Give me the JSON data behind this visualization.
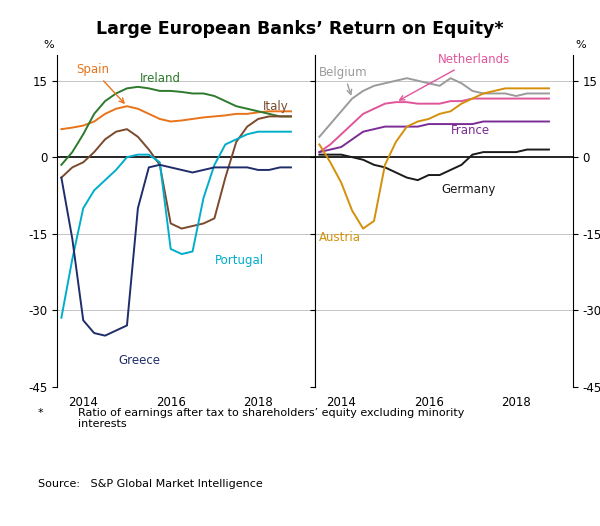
{
  "title": "Large European Banks’ Return on Equity*",
  "footnote_star": "*",
  "footnote_text": "Ratio of earnings after tax to shareholders’ equity excluding minority\ninterests",
  "source": "Source:   S&P Global Market Intelligence",
  "ylim": [
    -45,
    20
  ],
  "yticks": [
    -45,
    -30,
    -15,
    0,
    15
  ],
  "ytick_labels": [
    "-45",
    "-30",
    "-15",
    "0",
    "15"
  ],
  "xlim": [
    2013.4,
    2019.3
  ],
  "xticks": [
    2014,
    2016,
    2018
  ],
  "left_panel": {
    "Spain": {
      "color": "#E8731A",
      "x": [
        2013.5,
        2013.75,
        2014.0,
        2014.25,
        2014.5,
        2014.75,
        2015.0,
        2015.25,
        2015.5,
        2015.75,
        2016.0,
        2016.25,
        2016.5,
        2016.75,
        2017.0,
        2017.25,
        2017.5,
        2017.75,
        2018.0,
        2018.25,
        2018.5,
        2018.75
      ],
      "y": [
        5.5,
        5.8,
        6.2,
        7.0,
        8.5,
        9.5,
        10.0,
        9.5,
        8.5,
        7.5,
        7.0,
        7.2,
        7.5,
        7.8,
        8.0,
        8.2,
        8.5,
        8.5,
        8.8,
        9.0,
        9.0,
        9.0
      ]
    },
    "Ireland": {
      "color": "#2D7A2D",
      "x": [
        2013.5,
        2013.75,
        2014.0,
        2014.25,
        2014.5,
        2014.75,
        2015.0,
        2015.25,
        2015.5,
        2015.75,
        2016.0,
        2016.25,
        2016.5,
        2016.75,
        2017.0,
        2017.25,
        2017.5,
        2017.75,
        2018.0,
        2018.25,
        2018.5,
        2018.75
      ],
      "y": [
        -1.5,
        1.0,
        4.5,
        8.5,
        11.0,
        12.5,
        13.5,
        13.8,
        13.5,
        13.0,
        13.0,
        12.8,
        12.5,
        12.5,
        12.0,
        11.0,
        10.0,
        9.5,
        9.0,
        8.5,
        8.0,
        8.0
      ]
    },
    "Italy": {
      "color": "#7B4A2D",
      "x": [
        2013.5,
        2013.75,
        2014.0,
        2014.25,
        2014.5,
        2014.75,
        2015.0,
        2015.25,
        2015.5,
        2015.75,
        2016.0,
        2016.25,
        2016.5,
        2016.75,
        2017.0,
        2017.25,
        2017.5,
        2017.75,
        2018.0,
        2018.25,
        2018.5,
        2018.75
      ],
      "y": [
        -4.0,
        -2.0,
        -1.0,
        1.0,
        3.5,
        5.0,
        5.5,
        4.0,
        1.5,
        -1.5,
        -13.0,
        -14.0,
        -13.5,
        -13.0,
        -12.0,
        -4.0,
        3.0,
        6.0,
        7.5,
        8.0,
        8.0,
        8.0
      ]
    },
    "Portugal": {
      "color": "#00AECC",
      "x": [
        2013.5,
        2013.75,
        2014.0,
        2014.25,
        2014.5,
        2014.75,
        2015.0,
        2015.25,
        2015.5,
        2015.75,
        2016.0,
        2016.25,
        2016.5,
        2016.75,
        2017.0,
        2017.25,
        2017.5,
        2017.75,
        2018.0,
        2018.25,
        2018.5,
        2018.75
      ],
      "y": [
        -31.5,
        -20.0,
        -10.0,
        -6.5,
        -4.5,
        -2.5,
        0.0,
        0.5,
        0.5,
        -1.0,
        -18.0,
        -19.0,
        -18.5,
        -8.0,
        -1.5,
        2.5,
        3.5,
        4.5,
        5.0,
        5.0,
        5.0,
        5.0
      ]
    },
    "Greece": {
      "color": "#1F2D6B",
      "x": [
        2013.5,
        2013.75,
        2014.0,
        2014.25,
        2014.5,
        2014.75,
        2015.0,
        2015.25,
        2015.5,
        2015.75,
        2016.0,
        2016.25,
        2016.5,
        2016.75,
        2017.0,
        2017.25,
        2017.5,
        2017.75,
        2018.0,
        2018.25,
        2018.5,
        2018.75
      ],
      "y": [
        -4.0,
        -16.0,
        -32.0,
        -34.5,
        -35.0,
        -34.0,
        -33.0,
        -10.0,
        -2.0,
        -1.5,
        -2.0,
        -2.5,
        -3.0,
        -2.5,
        -2.0,
        -2.0,
        -2.0,
        -2.0,
        -2.5,
        -2.5,
        -2.0,
        -2.0
      ]
    }
  },
  "right_panel": {
    "Netherlands": {
      "color": "#E0559A",
      "x": [
        2013.5,
        2013.75,
        2014.0,
        2014.25,
        2014.5,
        2014.75,
        2015.0,
        2015.25,
        2015.5,
        2015.75,
        2016.0,
        2016.25,
        2016.5,
        2016.75,
        2017.0,
        2017.25,
        2017.5,
        2017.75,
        2018.0,
        2018.25,
        2018.5,
        2018.75
      ],
      "y": [
        1.0,
        2.5,
        4.5,
        6.5,
        8.5,
        9.5,
        10.5,
        10.8,
        10.8,
        10.5,
        10.5,
        10.5,
        11.0,
        11.0,
        11.5,
        11.5,
        11.5,
        11.5,
        11.5,
        11.5,
        11.5,
        11.5
      ]
    },
    "Belgium": {
      "color": "#9B9B9B",
      "x": [
        2013.5,
        2013.75,
        2014.0,
        2014.25,
        2014.5,
        2014.75,
        2015.0,
        2015.25,
        2015.5,
        2015.75,
        2016.0,
        2016.25,
        2016.5,
        2016.75,
        2017.0,
        2017.25,
        2017.5,
        2017.75,
        2018.0,
        2018.25,
        2018.5,
        2018.75
      ],
      "y": [
        4.0,
        6.5,
        9.0,
        11.5,
        13.0,
        14.0,
        14.5,
        15.0,
        15.5,
        15.0,
        14.5,
        14.0,
        15.5,
        14.5,
        13.0,
        12.5,
        12.5,
        12.5,
        12.0,
        12.5,
        12.5,
        12.5
      ]
    },
    "France": {
      "color": "#7B2D96",
      "x": [
        2013.5,
        2013.75,
        2014.0,
        2014.25,
        2014.5,
        2014.75,
        2015.0,
        2015.25,
        2015.5,
        2015.75,
        2016.0,
        2016.25,
        2016.5,
        2016.75,
        2017.0,
        2017.25,
        2017.5,
        2017.75,
        2018.0,
        2018.25,
        2018.5,
        2018.75
      ],
      "y": [
        1.0,
        1.5,
        2.0,
        3.5,
        5.0,
        5.5,
        6.0,
        6.0,
        6.0,
        6.0,
        6.5,
        6.5,
        6.5,
        6.5,
        6.5,
        7.0,
        7.0,
        7.0,
        7.0,
        7.0,
        7.0,
        7.0
      ]
    },
    "Germany": {
      "color": "#1A1A1A",
      "x": [
        2013.5,
        2013.75,
        2014.0,
        2014.25,
        2014.5,
        2014.75,
        2015.0,
        2015.25,
        2015.5,
        2015.75,
        2016.0,
        2016.25,
        2016.5,
        2016.75,
        2017.0,
        2017.25,
        2017.5,
        2017.75,
        2018.0,
        2018.25,
        2018.5,
        2018.75
      ],
      "y": [
        0.5,
        0.5,
        0.5,
        0.0,
        -0.5,
        -1.5,
        -2.0,
        -3.0,
        -4.0,
        -4.5,
        -3.5,
        -3.5,
        -2.5,
        -1.5,
        0.5,
        1.0,
        1.0,
        1.0,
        1.0,
        1.5,
        1.5,
        1.5
      ]
    },
    "Austria": {
      "color": "#D4900A",
      "x": [
        2013.5,
        2013.75,
        2014.0,
        2014.25,
        2014.5,
        2014.75,
        2015.0,
        2015.25,
        2015.5,
        2015.75,
        2016.0,
        2016.25,
        2016.5,
        2016.75,
        2017.0,
        2017.25,
        2017.5,
        2017.75,
        2018.0,
        2018.25,
        2018.5,
        2018.75
      ],
      "y": [
        2.5,
        -1.0,
        -5.0,
        -10.5,
        -14.0,
        -12.5,
        -1.5,
        3.0,
        6.0,
        7.0,
        7.5,
        8.5,
        9.0,
        10.5,
        11.5,
        12.5,
        13.0,
        13.5,
        13.5,
        13.5,
        13.5,
        13.5
      ]
    }
  },
  "background_color": "#FFFFFF",
  "grid_color": "#BBBBBB",
  "zero_line_color": "#000000"
}
